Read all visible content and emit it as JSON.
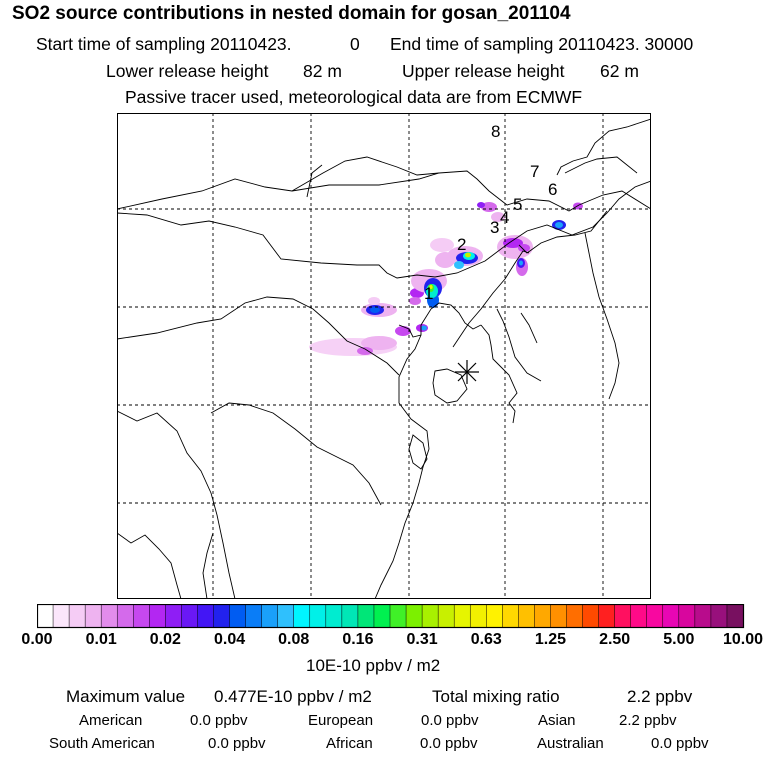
{
  "header": {
    "title": "SO2 source contributions in nested domain for gosan_201104",
    "start_label": "Start time of sampling 20110423.",
    "start_value": "0",
    "end_label": "End time of sampling 20110423. 30000",
    "lower_label": "Lower release height",
    "lower_value": "82 m",
    "upper_label": "Upper release height",
    "upper_value": "62 m",
    "tracer_note": "Passive tracer used, meteorological data are from ECMWF"
  },
  "map": {
    "background": "#ffffff",
    "receptor": "gosan",
    "sources": [
      {
        "label": "1"
      },
      {
        "label": "2"
      },
      {
        "label": "3"
      },
      {
        "label": "4"
      },
      {
        "label": "5"
      },
      {
        "label": "6"
      },
      {
        "label": "7"
      },
      {
        "label": "8"
      }
    ]
  },
  "colorbar": {
    "ticks": [
      "0.00",
      "0.01",
      "0.02",
      "0.04",
      "0.08",
      "0.16",
      "0.31",
      "0.63",
      "1.25",
      "2.50",
      "5.00",
      "10.00"
    ],
    "unit": "10E-10 ppbv / m2",
    "colors": [
      [
        "#ffffff",
        "#fbe6fb",
        "#f5ccf5",
        "#eeb3f0"
      ],
      [
        "#e28cec",
        "#d46aeb",
        "#c648ef",
        "#b327f2"
      ],
      [
        "#8f1ef5",
        "#6a18f5",
        "#4316f5",
        "#2222ee"
      ],
      [
        "#005cf2",
        "#0a7df7",
        "#1aa0fa",
        "#2fc0fd"
      ],
      [
        "#00f5ff",
        "#00f0e8",
        "#00ecd0",
        "#00e6b6"
      ],
      [
        "#00e678",
        "#00f050",
        "#40f028",
        "#7cf000"
      ],
      [
        "#a8f000",
        "#c8f000",
        "#e6f500",
        "#f2f000"
      ],
      [
        "#fff200",
        "#ffd800",
        "#ffc000",
        "#ffa800"
      ],
      [
        "#ff9000",
        "#ff6e00",
        "#ff4a00",
        "#ff2020"
      ],
      [
        "#ff1060",
        "#ff0a88",
        "#f808a0",
        "#e806b4"
      ],
      [
        "#d8069e",
        "#b80c8c",
        "#98107c",
        "#781060"
      ]
    ]
  },
  "stats": {
    "max_label": "Maximum value",
    "max_value": "0.477E-10 ppbv / m2",
    "total_label": "Total mixing ratio",
    "total_value": "2.2 ppbv",
    "regions": [
      {
        "name": "American",
        "value": "0.0 ppbv"
      },
      {
        "name": "European",
        "value": "0.0 ppbv"
      },
      {
        "name": "Asian",
        "value": "2.2 ppbv"
      },
      {
        "name": "South American",
        "value": "0.0 ppbv"
      },
      {
        "name": "African",
        "value": "0.0 ppbv"
      },
      {
        "name": "Australian",
        "value": "0.0 ppbv"
      }
    ]
  }
}
